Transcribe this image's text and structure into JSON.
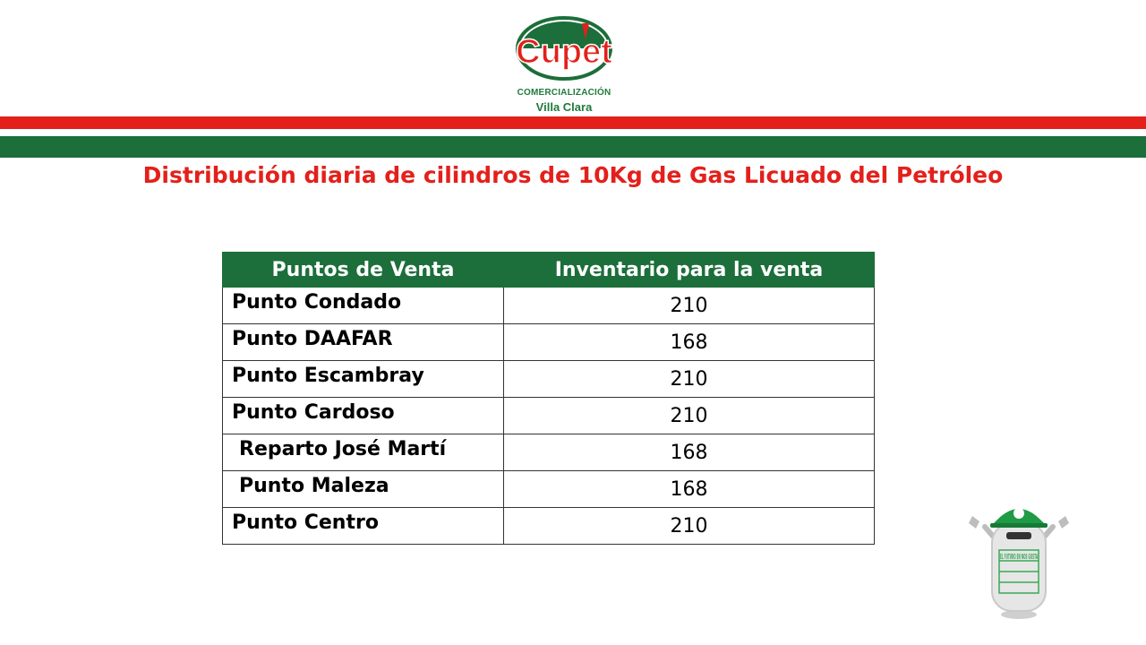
{
  "logo": {
    "brand": "Cupet",
    "subtitle_line1": "COMERCIALIZACIÓN",
    "subtitle_line2": "Villa Clara"
  },
  "title": "Distribución diaria de cilindros de 10Kg de Gas Licuado del Petróleo",
  "table": {
    "headers": [
      "Puntos de Venta",
      "Inventario  para la venta"
    ],
    "rows": [
      {
        "name": "Punto Condado",
        "value": "210"
      },
      {
        "name": "Punto DAAFAR",
        "value": "168"
      },
      {
        "name": "Punto Escambray",
        "value": "210"
      },
      {
        "name": "Punto Cardoso",
        "value": "210"
      },
      {
        "name": "Reparto José Martí",
        "value": "168"
      },
      {
        "name": "Punto Maleza",
        "value": "168"
      },
      {
        "name": "Punto Centro",
        "value": "210"
      }
    ]
  },
  "mascot": {
    "icon": "gas-cylinder-mascot-icon",
    "cylinder_text": "EL FUTURO EN NOS GUSTA"
  },
  "colors": {
    "red": "#e3201b",
    "green": "#1c6e3a",
    "white": "#ffffff"
  }
}
